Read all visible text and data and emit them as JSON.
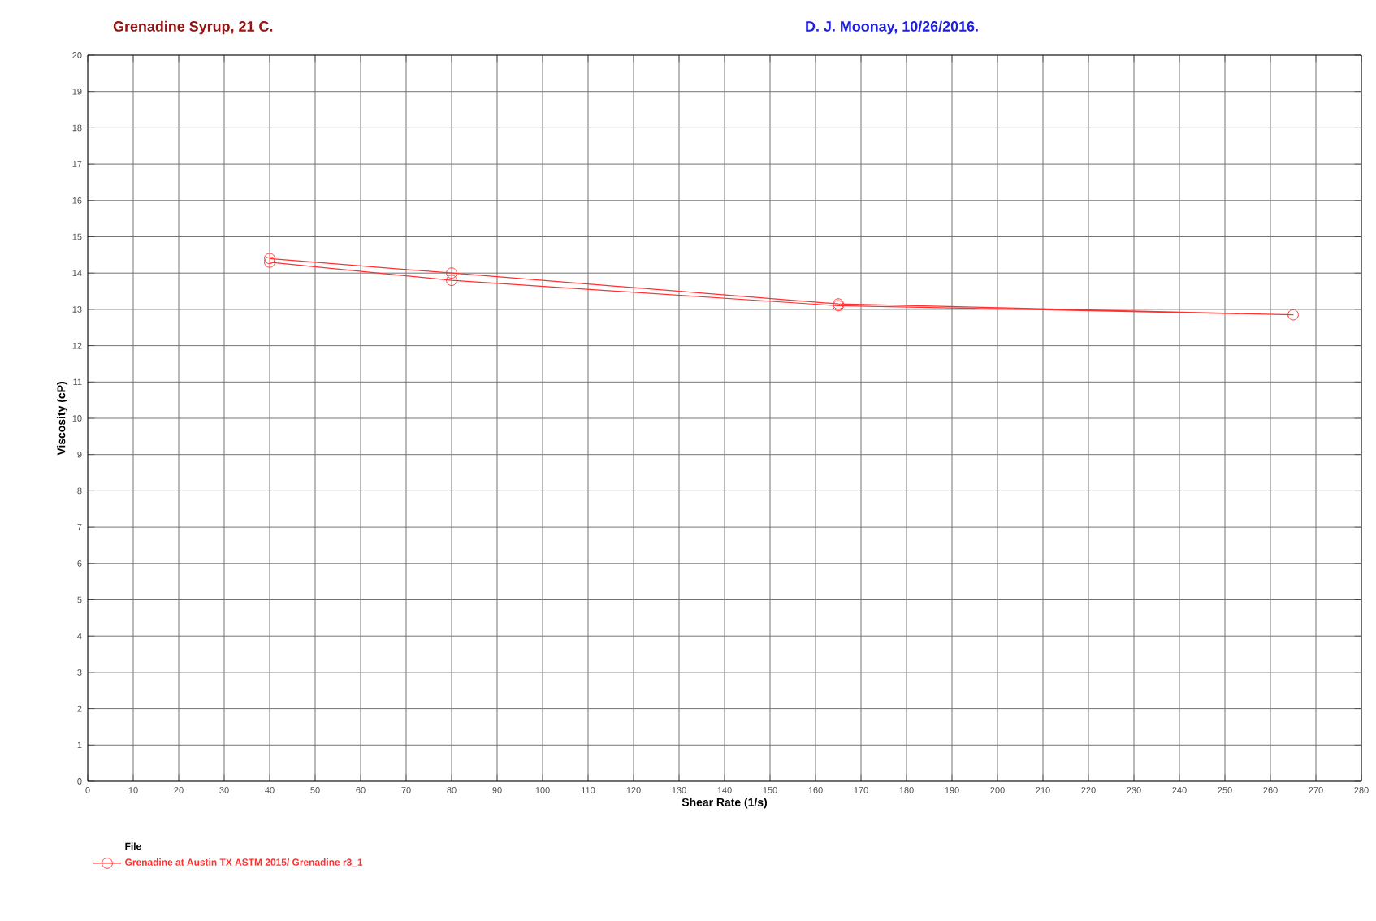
{
  "chart_data": {
    "type": "line",
    "title": "Grenadine Syrup, 21 C.",
    "subtitle": "D. J. Moonay, 10/26/2016.",
    "xlabel": "Shear Rate (1/s)",
    "ylabel": "Viscosity (cP)",
    "legend_title": "File",
    "series": [
      {
        "name": "Grenadine at Austin TX ASTM 2015/ Grenadine r3_1",
        "color": "#ff3030",
        "x": [
          40,
          80,
          165,
          265,
          165,
          80,
          40
        ],
        "values": [
          14.4,
          14.0,
          13.15,
          12.85,
          13.1,
          13.8,
          14.3
        ]
      }
    ],
    "xlim": [
      0,
      280
    ],
    "ylim": [
      0,
      20
    ],
    "xticks": [
      0,
      10,
      20,
      30,
      40,
      50,
      60,
      70,
      80,
      90,
      100,
      110,
      120,
      130,
      140,
      150,
      160,
      170,
      180,
      190,
      200,
      210,
      220,
      230,
      240,
      250,
      260,
      270,
      280
    ],
    "yticks": [
      0,
      1,
      2,
      3,
      4,
      5,
      6,
      7,
      8,
      9,
      10,
      11,
      12,
      13,
      14,
      15,
      16,
      17,
      18,
      19,
      20
    ],
    "grid": true,
    "legend": "bottom left",
    "marker": "circle",
    "line_style": "solid"
  }
}
